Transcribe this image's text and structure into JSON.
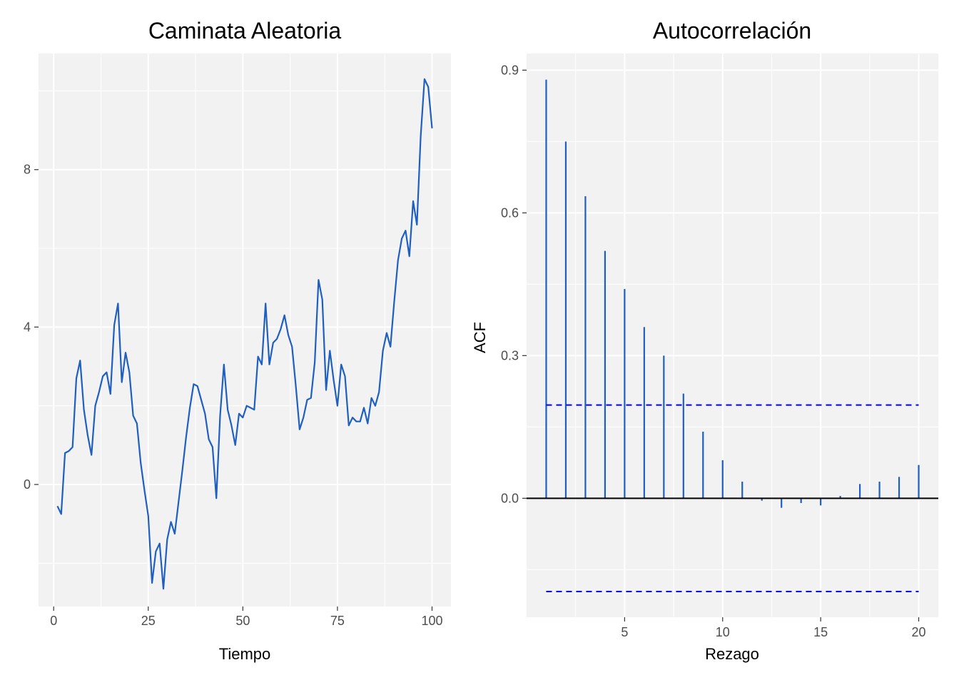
{
  "colors": {
    "panel_bg": "#f2f2f2",
    "grid": "#ffffff",
    "series": "#1f5fc0",
    "conf_line": "#0000ff",
    "zero_line": "#000000",
    "tick": "#333333"
  },
  "chart_data": [
    {
      "type": "line",
      "title": "Caminata Aleatoria",
      "xlabel": "Tiempo",
      "ylabel": "",
      "xlim": [
        -4,
        105
      ],
      "ylim": [
        -3.1,
        10.95
      ],
      "xticks": [
        0,
        25,
        50,
        75,
        100
      ],
      "yticks": [
        0,
        4,
        8
      ],
      "grid": true,
      "x": [
        1,
        2,
        3,
        4,
        5,
        6,
        7,
        8,
        9,
        10,
        11,
        12,
        13,
        14,
        15,
        16,
        17,
        18,
        19,
        20,
        21,
        22,
        23,
        24,
        25,
        26,
        27,
        28,
        29,
        30,
        31,
        32,
        33,
        34,
        35,
        36,
        37,
        38,
        39,
        40,
        41,
        42,
        43,
        44,
        45,
        46,
        47,
        48,
        49,
        50,
        51,
        52,
        53,
        54,
        55,
        56,
        57,
        58,
        59,
        60,
        61,
        62,
        63,
        64,
        65,
        66,
        67,
        68,
        69,
        70,
        71,
        72,
        73,
        74,
        75,
        76,
        77,
        78,
        79,
        80,
        81,
        82,
        83,
        84,
        85,
        86,
        87,
        88,
        89,
        90,
        91,
        92,
        93,
        94,
        95,
        96,
        97,
        98,
        99,
        100
      ],
      "y": [
        -0.55,
        -0.75,
        0.8,
        0.85,
        0.95,
        2.7,
        3.15,
        1.9,
        1.25,
        0.75,
        2.0,
        2.35,
        2.75,
        2.85,
        2.3,
        4.05,
        4.6,
        2.6,
        3.35,
        2.85,
        1.75,
        1.55,
        0.55,
        -0.15,
        -0.8,
        -2.5,
        -1.7,
        -1.5,
        -2.65,
        -1.4,
        -0.95,
        -1.25,
        -0.45,
        0.35,
        1.2,
        1.95,
        2.55,
        2.5,
        2.15,
        1.8,
        1.15,
        0.95,
        -0.35,
        1.75,
        3.05,
        1.9,
        1.5,
        1.0,
        1.8,
        1.7,
        2.0,
        1.95,
        1.9,
        3.25,
        3.05,
        4.6,
        3.05,
        3.6,
        3.7,
        3.95,
        4.3,
        3.8,
        3.5,
        2.5,
        1.4,
        1.7,
        2.15,
        2.2,
        3.1,
        5.2,
        4.7,
        2.4,
        3.4,
        2.65,
        2.0,
        3.05,
        2.75,
        1.5,
        1.7,
        1.6,
        1.6,
        1.95,
        1.55,
        2.2,
        2.0,
        2.35,
        3.4,
        3.85,
        3.5,
        4.65,
        5.7,
        6.25,
        6.45,
        5.8,
        7.2,
        6.6,
        8.85,
        10.3,
        10.1,
        9.05
      ]
    },
    {
      "type": "bar",
      "title": "Autocorrelación",
      "xlabel": "Rezago",
      "ylabel": "ACF",
      "xlim": [
        0.0,
        21.0
      ],
      "ylim": [
        -0.25,
        0.935
      ],
      "xticks": [
        5,
        10,
        15,
        20
      ],
      "yticks": [
        0.0,
        0.3,
        0.6,
        0.9
      ],
      "ytick_labels": [
        "0.0",
        "0.3",
        "0.6",
        "0.9"
      ],
      "grid": true,
      "lags": [
        1,
        2,
        3,
        4,
        5,
        6,
        7,
        8,
        9,
        10,
        11,
        12,
        13,
        14,
        15,
        16,
        17,
        18,
        19,
        20
      ],
      "values": [
        0.88,
        0.75,
        0.635,
        0.52,
        0.44,
        0.36,
        0.3,
        0.22,
        0.14,
        0.08,
        0.035,
        -0.005,
        -0.02,
        -0.01,
        -0.015,
        0.005,
        0.03,
        0.035,
        0.045,
        0.07
      ],
      "conf_upper": 0.196,
      "conf_lower": -0.196
    }
  ]
}
